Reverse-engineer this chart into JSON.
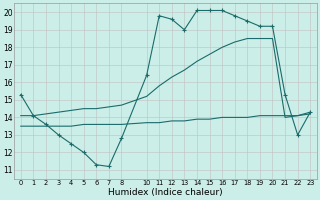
{
  "xlabel": "Humidex (Indice chaleur)",
  "bg_color": "#cceee8",
  "grid_color": "#c0c0c0",
  "line_color": "#1a6b6b",
  "xlim": [
    -0.5,
    23.5
  ],
  "ylim": [
    10.5,
    20.5
  ],
  "yticks": [
    11,
    12,
    13,
    14,
    15,
    16,
    17,
    18,
    19,
    20
  ],
  "xticks": [
    0,
    1,
    2,
    3,
    4,
    5,
    6,
    7,
    8,
    10,
    11,
    12,
    13,
    14,
    15,
    16,
    17,
    18,
    19,
    20,
    21,
    22,
    23
  ],
  "line1_x": [
    0,
    1,
    2,
    3,
    4,
    5,
    6,
    7,
    8,
    10,
    11,
    12,
    13,
    14,
    15,
    16,
    17,
    18,
    19,
    20,
    21,
    22,
    23
  ],
  "line1_y": [
    15.3,
    14.1,
    13.6,
    13.0,
    12.5,
    12.0,
    11.3,
    11.2,
    12.8,
    16.4,
    19.8,
    19.6,
    19.0,
    20.1,
    20.1,
    20.1,
    19.8,
    19.5,
    19.2,
    19.2,
    15.3,
    13.0,
    14.3
  ],
  "line2_x": [
    0,
    1,
    2,
    3,
    4,
    5,
    6,
    7,
    8,
    10,
    11,
    12,
    13,
    14,
    15,
    16,
    17,
    18,
    19,
    20,
    21,
    22,
    23
  ],
  "line2_y": [
    13.5,
    13.5,
    13.5,
    13.5,
    13.5,
    13.6,
    13.6,
    13.6,
    13.6,
    13.7,
    13.7,
    13.8,
    13.8,
    13.9,
    13.9,
    14.0,
    14.0,
    14.0,
    14.1,
    14.1,
    14.1,
    14.1,
    14.2
  ],
  "line3_x": [
    0,
    1,
    2,
    3,
    4,
    5,
    6,
    7,
    8,
    10,
    11,
    12,
    13,
    14,
    15,
    16,
    17,
    18,
    19,
    20,
    21,
    22,
    23
  ],
  "line3_y": [
    14.1,
    14.1,
    14.2,
    14.3,
    14.4,
    14.5,
    14.5,
    14.6,
    14.7,
    15.2,
    15.8,
    16.3,
    16.7,
    17.2,
    17.6,
    18.0,
    18.3,
    18.5,
    18.5,
    18.5,
    14.0,
    14.1,
    14.3
  ]
}
